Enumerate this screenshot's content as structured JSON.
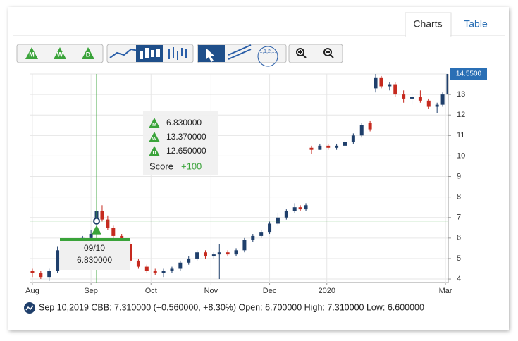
{
  "tabs": [
    "Charts",
    "Table"
  ],
  "toolbar": {
    "signals": [
      "M",
      "W",
      "D"
    ],
    "fib_label": "1,1,2,..."
  },
  "chart_data": {
    "type": "candlestick",
    "x": [
      1,
      4,
      7,
      10,
      13,
      16,
      19,
      22,
      24,
      26,
      28,
      30,
      33,
      36,
      39,
      42,
      45,
      48,
      51,
      54,
      57,
      60,
      63,
      66,
      68,
      71,
      74,
      77,
      80,
      83,
      86,
      89,
      92,
      95,
      97,
      99,
      101,
      104,
      107,
      110,
      113,
      116,
      119,
      122,
      124,
      126,
      129,
      131,
      134,
      137,
      140,
      143,
      146,
      148,
      150
    ],
    "open": [
      4.4,
      4.3,
      4.1,
      4.4,
      5.4,
      5.6,
      5.8,
      6.0,
      6.7,
      7.3,
      6.9,
      6.5,
      6.1,
      5.7,
      4.9,
      4.6,
      4.4,
      4.3,
      4.4,
      4.5,
      4.8,
      5.0,
      5.3,
      5.1,
      5.2,
      5.3,
      5.2,
      5.4,
      5.9,
      6.1,
      6.3,
      6.7,
      7.0,
      7.3,
      7.5,
      7.4,
      10.4,
      10.3,
      10.5,
      10.4,
      10.5,
      10.7,
      11.0,
      11.6,
      13.3,
      13.8,
      13.4,
      13.5,
      13.0,
      12.8,
      12.9,
      12.7,
      12.4,
      12.5,
      13.0
    ],
    "high": [
      4.5,
      4.4,
      4.5,
      5.6,
      5.8,
      5.9,
      6.1,
      6.4,
      7.31,
      7.6,
      7.1,
      6.6,
      6.2,
      5.8,
      5.0,
      4.7,
      4.5,
      4.5,
      4.6,
      4.9,
      5.1,
      5.4,
      5.4,
      5.3,
      5.7,
      5.4,
      5.5,
      6.0,
      6.2,
      6.4,
      6.8,
      7.2,
      7.4,
      7.7,
      7.6,
      7.7,
      10.5,
      10.6,
      10.6,
      10.6,
      10.8,
      11.1,
      11.6,
      11.7,
      14.0,
      13.9,
      13.6,
      13.6,
      13.2,
      13.1,
      13.2,
      12.8,
      12.6,
      13.1,
      14.6
    ],
    "low": [
      4.1,
      4.0,
      3.9,
      4.3,
      5.3,
      5.5,
      5.7,
      5.9,
      6.6,
      6.8,
      6.4,
      6.0,
      5.6,
      4.8,
      4.5,
      4.3,
      4.2,
      4.1,
      4.3,
      4.4,
      4.7,
      4.9,
      5.0,
      5.0,
      4.0,
      5.1,
      5.1,
      5.3,
      5.8,
      6.0,
      6.2,
      6.6,
      6.9,
      7.2,
      7.3,
      7.3,
      10.1,
      10.3,
      10.3,
      10.3,
      10.5,
      10.6,
      10.9,
      11.2,
      13.1,
      13.3,
      13.2,
      12.9,
      12.6,
      12.5,
      12.6,
      12.3,
      12.1,
      12.4,
      12.9
    ],
    "close": [
      4.3,
      4.1,
      4.4,
      5.4,
      5.6,
      5.8,
      6.0,
      6.2,
      7.31,
      6.9,
      6.5,
      6.1,
      5.7,
      4.9,
      4.6,
      4.4,
      4.3,
      4.4,
      4.5,
      4.8,
      5.0,
      5.3,
      5.1,
      5.2,
      5.3,
      5.2,
      5.4,
      5.9,
      6.1,
      6.3,
      6.7,
      7.0,
      7.3,
      7.5,
      7.4,
      7.6,
      10.3,
      10.5,
      10.4,
      10.5,
      10.7,
      11.0,
      11.5,
      11.3,
      13.8,
      13.4,
      13.5,
      13.0,
      12.8,
      12.9,
      12.7,
      12.4,
      12.5,
      13.0,
      14.55
    ],
    "up_color": "#1f3f6b",
    "down_color": "#c62a1f",
    "xlim": [
      0,
      150
    ],
    "xticks": [
      {
        "value": 1,
        "label": "Aug"
      },
      {
        "value": 22,
        "label": "Sep"
      },
      {
        "value": 43.5,
        "label": "Oct"
      },
      {
        "value": 65,
        "label": "Nov"
      },
      {
        "value": 86,
        "label": "Dec"
      },
      {
        "value": 106.5,
        "label": "2020"
      },
      {
        "value": 149,
        "label": "Mar"
      }
    ],
    "ylim": [
      3.83,
      14
    ],
    "yticks": [
      4,
      5,
      6,
      7,
      8,
      9,
      10,
      11,
      12,
      13
    ],
    "grid": true,
    "last_price": {
      "value": 14.55,
      "label": "14.5500"
    },
    "crosshair": {
      "x": 24,
      "y": 6.83,
      "date_label": "09/10",
      "value_label": "6.830000",
      "color": "#3aa33a"
    },
    "tooltip": {
      "rows": [
        {
          "icon": "M",
          "value": "6.830000"
        },
        {
          "icon": "W",
          "value": "13.370000"
        },
        {
          "icon": "D",
          "value": "12.650000"
        }
      ],
      "score_label": "Score",
      "score": "+100"
    },
    "status": "Sep 10,2019 CBB: 7.310000 (+0.560000, +8.30%) Open: 6.700000 High: 7.310000 Low: 6.600000"
  }
}
